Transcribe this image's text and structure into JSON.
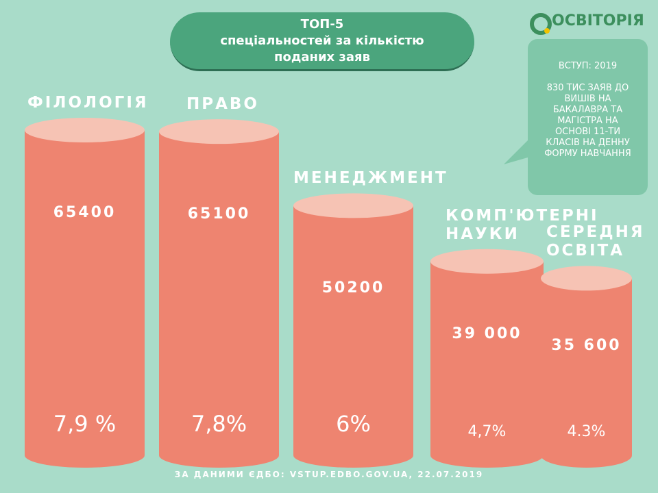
{
  "chart_data": {
    "type": "cylinder-bar",
    "title": [
      "ТОП-5",
      "спеціальностей за кількістю",
      "поданих заяв"
    ],
    "categories": [
      "ФІЛОЛОГІЯ",
      "ПРАВО",
      "МЕНЕДЖМЕНТ",
      "КОМП'ЮТЕРНІ НАУКИ",
      "СЕРЕДНЯ ОСВІТА"
    ],
    "values": [
      65400,
      65100,
      50200,
      39000,
      35600
    ],
    "value_labels": [
      "65400",
      "65100",
      "50200",
      "39 000",
      "35 600"
    ],
    "color": "#ee8470",
    "percentages": {
      "values": [
        7.9,
        7.8,
        6,
        4.7,
        4.3
      ],
      "value_labels": [
        "7,9 %",
        "7,8%",
        "6%",
        "4,7%",
        "4.3%"
      ]
    },
    "source": "ЗА ДАНИМИ ЄДБО: VSTUP.EDBO.GOV.UA, 22.07.2019"
  },
  "logo": "ОСВІТОРІЯ",
  "info": {
    "year_line": "ВСТУП: 2019",
    "text": "830 ТИС ЗАЯВ ДО ВИШІВ НА БАКАЛАВРА ТА МАГІСТРА НА ОСНОВІ 11-ТИ КЛАСІВ НА ДЕННУ ФОРМУ НАВЧАННЯ"
  }
}
